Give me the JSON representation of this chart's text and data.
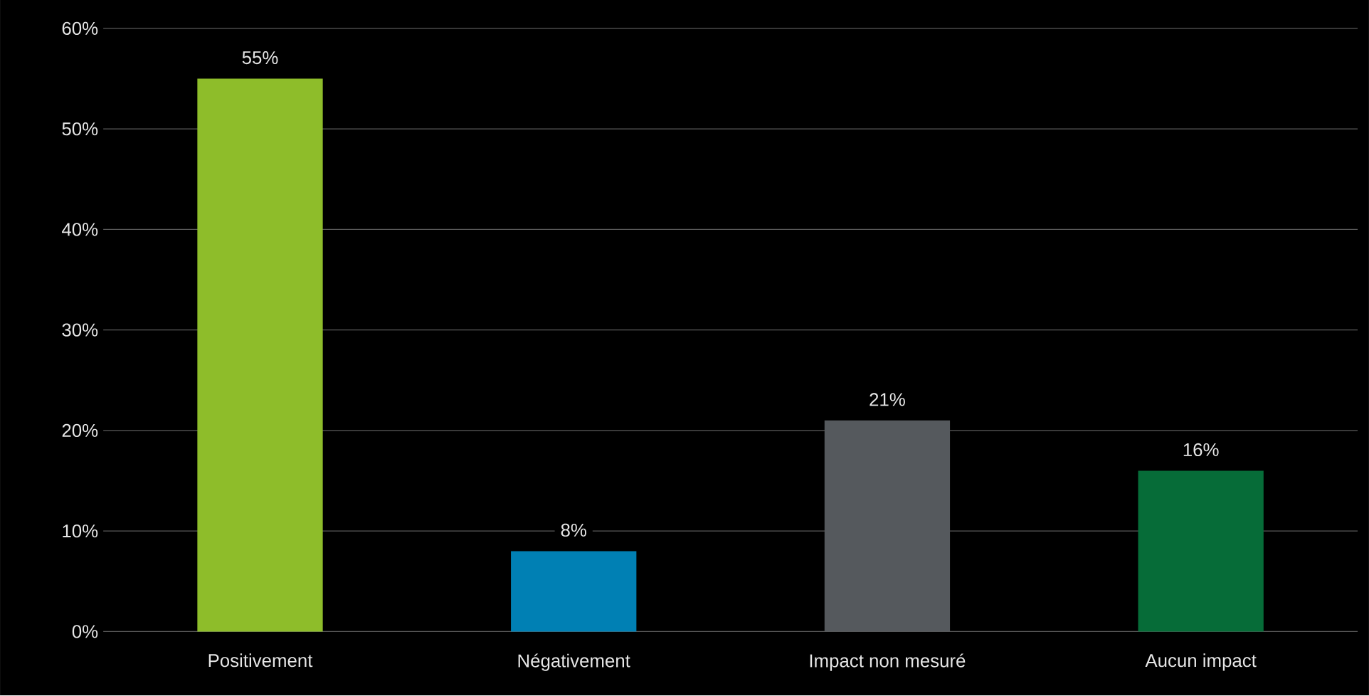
{
  "chart_data": {
    "type": "bar",
    "categories": [
      "Positivement",
      "Négativement",
      "Impact non mesuré",
      "Aucun impact"
    ],
    "values": [
      55,
      8,
      21,
      16
    ],
    "colors": [
      "#8ebd2a",
      "#0080b4",
      "#55595d",
      "#066c38"
    ],
    "value_labels": [
      "55%",
      "8%",
      "21%",
      "16%"
    ],
    "ylim": [
      0,
      60
    ],
    "yticks": [
      {
        "value": 0,
        "label": "0%"
      },
      {
        "value": 10,
        "label": "10%"
      },
      {
        "value": 20,
        "label": "20%"
      },
      {
        "value": 30,
        "label": "30%"
      },
      {
        "value": 40,
        "label": "40%"
      },
      {
        "value": 50,
        "label": "50%"
      },
      {
        "value": 60,
        "label": "60%"
      }
    ],
    "grid": "y"
  }
}
